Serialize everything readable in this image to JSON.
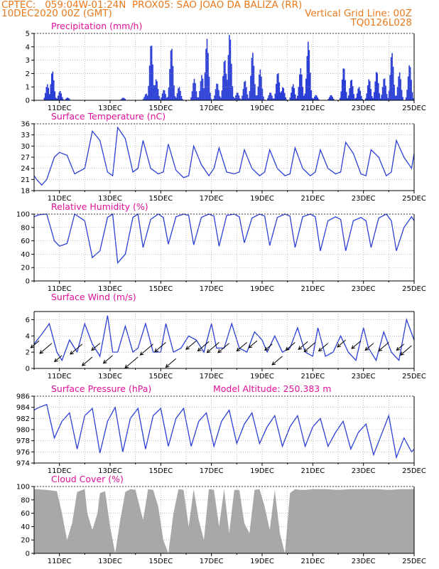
{
  "header": {
    "line1": "CPTEC:   059:04W-01:24N  PROX05: SAO JOAO DA BALIZA (RR)",
    "line2_left": "10DEC2020 00Z (GMT)",
    "line2_right": "Vertical Grid Line: 00Z",
    "line3_right": "TQ0126L028"
  },
  "colors": {
    "header": "#e8791c",
    "title": "#e0109a",
    "line": "#2b3fd6",
    "bar": "#2b3fd6",
    "cloud": "#a8a8a8",
    "grid": "#9a9a9a"
  },
  "chart_data": [
    {
      "type": "bar",
      "title": "Precipitation (mm/h)",
      "ylim": [
        0,
        5
      ],
      "yticks": [
        "0",
        "1",
        "2",
        "3",
        "4",
        "5"
      ],
      "xticks": [
        "11DEC",
        "13DEC",
        "15DEC",
        "17DEC",
        "19DEC",
        "21DEC",
        "23DEC",
        "25DEC"
      ],
      "x_day_range": [
        10,
        25
      ],
      "peaks": [
        [
          10.5,
          1.2
        ],
        [
          10.7,
          2.2
        ],
        [
          11.0,
          0.7
        ],
        [
          11.3,
          0.2
        ],
        [
          13.5,
          0.2
        ],
        [
          14.4,
          0.5
        ],
        [
          14.6,
          4.3
        ],
        [
          14.8,
          1.6
        ],
        [
          15.1,
          0.8
        ],
        [
          15.4,
          4.0
        ],
        [
          15.7,
          1.0
        ],
        [
          16.3,
          1.6
        ],
        [
          16.6,
          1.9
        ],
        [
          16.8,
          4.6
        ],
        [
          17.2,
          1.3
        ],
        [
          17.5,
          3.1
        ],
        [
          17.7,
          5.0
        ],
        [
          18.0,
          0.6
        ],
        [
          18.3,
          1.5
        ],
        [
          18.6,
          3.6
        ],
        [
          18.9,
          2.3
        ],
        [
          19.3,
          0.6
        ],
        [
          19.6,
          2.1
        ],
        [
          19.8,
          1.0
        ],
        [
          20.2,
          1.2
        ],
        [
          20.5,
          2.4
        ],
        [
          20.8,
          4.4
        ],
        [
          21.1,
          0.4
        ],
        [
          21.7,
          0.4
        ],
        [
          22.2,
          2.5
        ],
        [
          22.5,
          1.6
        ],
        [
          22.8,
          1.0
        ],
        [
          23.2,
          1.6
        ],
        [
          23.5,
          2.2
        ],
        [
          23.8,
          1.7
        ],
        [
          24.1,
          3.6
        ],
        [
          24.4,
          2.1
        ],
        [
          24.8,
          2.7
        ]
      ]
    },
    {
      "type": "line",
      "title": "Surface Temperature (nC)",
      "ylim": [
        18,
        36
      ],
      "yticks": [
        "18",
        "21",
        "24",
        "27",
        "30",
        "33",
        "36"
      ],
      "x": [
        10,
        10.1,
        10.3,
        10.5,
        10.8,
        11.0,
        11.3,
        11.6,
        12.0,
        12.3,
        12.6,
        12.9,
        13.1,
        13.3,
        13.6,
        13.9,
        14.1,
        14.3,
        14.6,
        14.9,
        15.1,
        15.3,
        15.6,
        15.9,
        16.1,
        16.3,
        16.6,
        16.9,
        17.1,
        17.3,
        17.6,
        17.9,
        18.1,
        18.3,
        18.6,
        18.9,
        19.1,
        19.3,
        19.6,
        19.9,
        20.1,
        20.3,
        20.6,
        20.9,
        21.1,
        21.3,
        21.6,
        21.9,
        22.1,
        22.3,
        22.6,
        22.9,
        23.1,
        23.3,
        23.6,
        23.9,
        24.1,
        24.3,
        24.6,
        24.9,
        25
      ],
      "y": [
        22,
        21,
        19.5,
        21,
        27,
        28.3,
        27.5,
        22.5,
        24,
        34,
        31.5,
        23,
        22,
        35,
        32,
        23,
        24,
        31.5,
        24,
        22.5,
        23,
        30.5,
        23.5,
        21.5,
        22,
        30,
        25,
        22,
        24,
        29.5,
        23,
        22.5,
        23,
        29,
        24,
        22,
        23,
        29,
        24,
        22,
        22.5,
        29.5,
        24,
        22,
        23,
        29,
        24,
        22.5,
        23,
        31,
        28,
        22.5,
        22,
        29,
        27,
        22,
        23,
        31.5,
        27,
        24,
        28
      ]
    },
    {
      "type": "line",
      "title": "Relative Humidity (%)",
      "ylim": [
        0,
        100
      ],
      "yticks": [
        "0",
        "20",
        "40",
        "60",
        "80",
        "100"
      ],
      "x": [
        10,
        10.2,
        10.5,
        10.8,
        11.0,
        11.3,
        11.6,
        12.0,
        12.3,
        12.6,
        12.9,
        13.1,
        13.3,
        13.6,
        13.9,
        14.1,
        14.3,
        14.6,
        14.9,
        15.1,
        15.3,
        15.6,
        15.9,
        16.1,
        16.3,
        16.6,
        16.9,
        17.1,
        17.3,
        17.6,
        17.9,
        18.1,
        18.3,
        18.6,
        18.9,
        19.1,
        19.3,
        19.6,
        19.9,
        20.1,
        20.3,
        20.6,
        20.9,
        21.1,
        21.3,
        21.6,
        21.9,
        22.1,
        22.3,
        22.6,
        22.9,
        23.1,
        23.3,
        23.6,
        23.9,
        24.1,
        24.3,
        24.6,
        24.9,
        25
      ],
      "y": [
        96,
        99,
        100,
        60,
        52,
        56,
        100,
        90,
        35,
        45,
        95,
        100,
        27,
        40,
        95,
        100,
        50,
        92,
        100,
        95,
        55,
        96,
        100,
        98,
        54,
        95,
        100,
        97,
        52,
        98,
        100,
        96,
        57,
        94,
        100,
        97,
        53,
        95,
        100,
        97,
        50,
        96,
        100,
        96,
        45,
        90,
        96,
        92,
        45,
        90,
        95,
        90,
        50,
        94,
        100,
        90,
        45,
        80,
        96,
        90
      ]
    },
    {
      "type": "line",
      "title": "Surface Wind (m/s)",
      "ylim": [
        0,
        7
      ],
      "yticks": [
        "0",
        "2",
        "4",
        "6"
      ],
      "x": [
        10,
        10.3,
        10.6,
        10.9,
        11.1,
        11.4,
        11.7,
        12.0,
        12.3,
        12.6,
        12.9,
        13.1,
        13.3,
        13.6,
        13.9,
        14.1,
        14.4,
        14.7,
        15.0,
        15.2,
        15.5,
        15.8,
        16.1,
        16.4,
        16.7,
        17.0,
        17.2,
        17.5,
        17.8,
        18.1,
        18.4,
        18.7,
        19.0,
        19.2,
        19.5,
        19.8,
        20.1,
        20.4,
        20.7,
        21.0,
        21.2,
        21.5,
        21.8,
        22.1,
        22.4,
        22.7,
        23.0,
        23.2,
        23.5,
        23.8,
        24.1,
        24.4,
        24.7,
        25
      ],
      "y": [
        3,
        4.2,
        5.5,
        2,
        1,
        3.5,
        2,
        5.5,
        3,
        1.5,
        6.5,
        2,
        2,
        5.2,
        2,
        2.5,
        5.5,
        2,
        2,
        5.5,
        2,
        2.5,
        4,
        3.5,
        2,
        5.5,
        2.5,
        2.5,
        5.5,
        2.5,
        2,
        4.5,
        3.5,
        2,
        4,
        2,
        2.5,
        5,
        2,
        1.5,
        5,
        1.5,
        2,
        4,
        2,
        1,
        5,
        2.5,
        1,
        4.5,
        2,
        1,
        6,
        3.5
      ]
    },
    {
      "type": "line",
      "title": "Surface Pressure (hPa)",
      "annotation": "Model Altitude: 250.383 m",
      "ylim": [
        974,
        986
      ],
      "yticks": [
        "974",
        "976",
        "978",
        "980",
        "982",
        "984",
        "986"
      ],
      "x": [
        10,
        10.2,
        10.5,
        10.8,
        11.1,
        11.4,
        11.7,
        12.0,
        12.3,
        12.6,
        12.9,
        13.2,
        13.5,
        13.8,
        14.1,
        14.4,
        14.7,
        15.0,
        15.3,
        15.6,
        15.9,
        16.2,
        16.5,
        16.8,
        17.1,
        17.4,
        17.7,
        18.0,
        18.3,
        18.6,
        18.9,
        19.2,
        19.5,
        19.8,
        20.1,
        20.4,
        20.7,
        21.0,
        21.3,
        21.6,
        21.9,
        22.2,
        22.5,
        22.8,
        23.1,
        23.4,
        23.7,
        24.0,
        24.3,
        24.6,
        24.9,
        25
      ],
      "y": [
        983.5,
        984,
        984.5,
        978.5,
        981.5,
        983,
        976.5,
        982.5,
        983.8,
        975.8,
        981.5,
        984,
        976,
        982,
        983.8,
        976.5,
        982.5,
        983.8,
        977,
        982,
        983.8,
        977,
        981.5,
        983,
        977,
        981.5,
        983.5,
        977.5,
        981,
        983,
        977.5,
        980.5,
        982.5,
        977,
        980.5,
        982.5,
        977,
        980.5,
        982,
        977,
        979.5,
        981.5,
        976.5,
        979.5,
        981,
        975.5,
        979,
        982.5,
        975,
        978.5,
        976,
        976.5
      ]
    },
    {
      "type": "area",
      "title": "Cloud Cover (%)",
      "ylim": [
        0,
        100
      ],
      "yticks": [
        "0",
        "20",
        "40",
        "60",
        "80",
        "100"
      ],
      "x": [
        10,
        10.5,
        10.9,
        11.1,
        11.3,
        11.5,
        11.7,
        12.0,
        12.1,
        12.3,
        12.5,
        12.6,
        12.8,
        13.0,
        13.2,
        13.4,
        13.6,
        13.8,
        14.0,
        14.3,
        14.5,
        14.7,
        14.9,
        15.1,
        15.3,
        15.5,
        15.7,
        15.9,
        16.1,
        16.3,
        16.5,
        16.7,
        16.9,
        17.1,
        17.3,
        17.5,
        17.7,
        17.9,
        18.1,
        18.3,
        18.5,
        18.7,
        18.9,
        19.1,
        19.3,
        19.5,
        19.7,
        19.9,
        20.1,
        20.3,
        20.5,
        20.7,
        21.0,
        21.5,
        22.0,
        22.5,
        23.0,
        23.5,
        24.0,
        24.5,
        25
      ],
      "y": [
        96,
        95,
        93,
        60,
        20,
        45,
        92,
        96,
        60,
        35,
        60,
        90,
        93,
        40,
        0,
        50,
        92,
        96,
        95,
        50,
        96,
        95,
        70,
        20,
        0,
        60,
        96,
        95,
        40,
        96,
        50,
        20,
        96,
        95,
        40,
        96,
        30,
        95,
        95,
        45,
        30,
        95,
        96,
        70,
        35,
        95,
        30,
        0,
        90,
        96,
        95,
        95,
        96,
        96,
        95,
        96,
        96,
        96,
        95,
        96,
        96
      ]
    }
  ],
  "wind_arrows": [
    [
      10.2,
      1.2,
      0.9
    ],
    [
      10.7,
      0.9,
      1.3
    ],
    [
      11.1,
      -0.6,
      0.8
    ],
    [
      11.9,
      0.8,
      1.3
    ],
    [
      12.3,
      -0.8,
      1.1
    ],
    [
      12.6,
      0.9,
      0.9
    ],
    [
      13.1,
      -0.6,
      1.0
    ],
    [
      14.1,
      -0.8,
      1.4
    ],
    [
      14.7,
      0.8,
      1.4
    ],
    [
      15.2,
      1.0,
      1.2
    ],
    [
      15.6,
      -1.0,
      1.1
    ],
    [
      16.4,
      1.2,
      1.1
    ],
    [
      16.9,
      1.1,
      1.2
    ],
    [
      17.3,
      1.0,
      1.3
    ],
    [
      17.7,
      0.9,
      1.2
    ],
    [
      18.4,
      1.0,
      1.1
    ],
    [
      18.8,
      1.2,
      0.9
    ],
    [
      19.4,
      0.8,
      0.8
    ],
    [
      19.8,
      -0.7,
      1.1
    ],
    [
      20.3,
      1.0,
      1.0
    ],
    [
      20.8,
      1.1,
      1.0
    ],
    [
      21.1,
      1.0,
      1.2
    ],
    [
      21.6,
      0.9,
      1.0
    ],
    [
      22.3,
      1.3,
      0.9
    ],
    [
      22.9,
      1.2,
      1.0
    ],
    [
      23.4,
      0.9,
      0.9
    ],
    [
      24.0,
      1.0,
      1.1
    ],
    [
      24.6,
      0.8,
      0.8
    ],
    [
      24.9,
      0.6,
      1.2
    ]
  ]
}
